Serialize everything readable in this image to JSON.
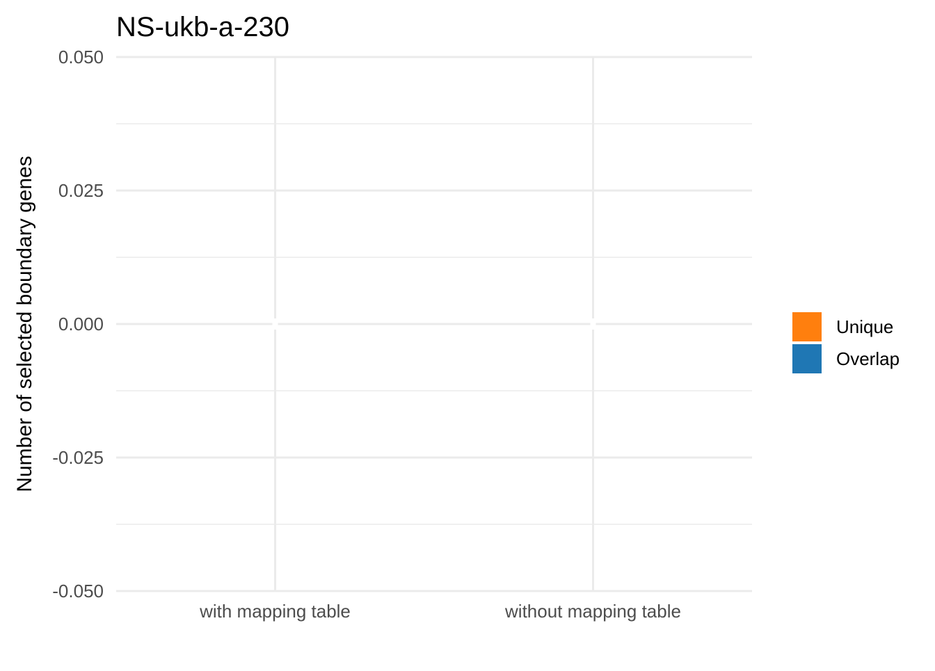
{
  "chart_data": {
    "type": "bar",
    "title": "NS-ukb-a-230",
    "xlabel": "",
    "ylabel": "Number of selected boundary genes",
    "categories": [
      "with mapping table",
      "without mapping table"
    ],
    "series": [
      {
        "name": "Unique",
        "color": "#FF7F0E",
        "values": [
          0,
          0
        ]
      },
      {
        "name": "Overlap",
        "color": "#1F77B4",
        "values": [
          0,
          0
        ]
      }
    ],
    "ylim": [
      -0.05,
      0.05
    ],
    "yticks": [
      -0.05,
      -0.025,
      0,
      0.025,
      0.05
    ],
    "ytick_labels": [
      "-0.050",
      "-0.025",
      "0.000",
      "0.025",
      "0.050"
    ],
    "grid": true,
    "legend_position": "right",
    "stacked": true
  }
}
